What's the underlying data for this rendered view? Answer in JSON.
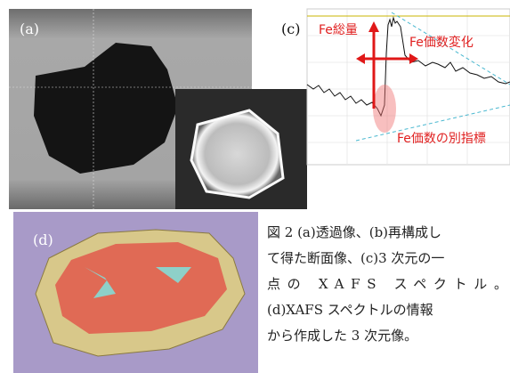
{
  "figure": {
    "panel_a": {
      "label": "(a)"
    },
    "panel_c": {
      "label": "(c)",
      "annotations": [
        "Fe総量",
        "Fe価数変化",
        "Fe価数の別指標"
      ]
    },
    "panel_d": {
      "label": "(d)"
    },
    "caption": {
      "lines": [
        "図 2 (a)透過像、(b)再構成し",
        "て得た断面像、(c)3 次元の一",
        "点の XAFS スペクトル。",
        "(d)XAFS スペクトルの情報",
        "から作成した 3 次元像。"
      ]
    }
  }
}
